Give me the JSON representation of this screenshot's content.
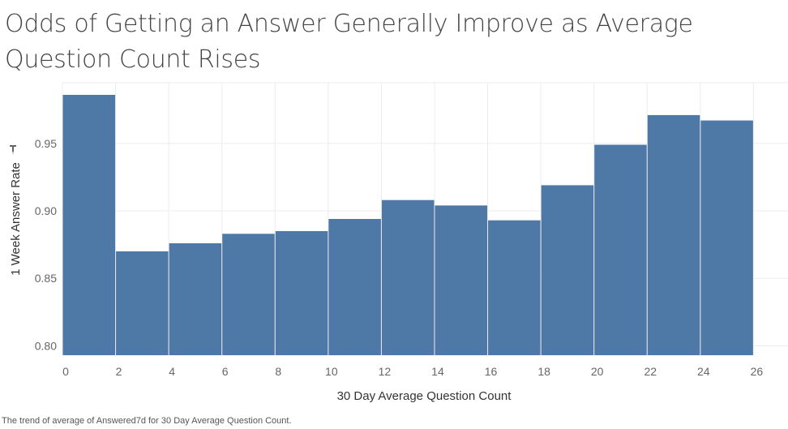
{
  "title": "Odds of Getting an Answer Generally Improve as Average Question Count Rises",
  "caption": "The trend of average of Answered7d for 30 Day Average Question Count.",
  "colors": {
    "bar": "#4e79a7",
    "grid": "#ececec",
    "axis_text": "#666666"
  },
  "chart_data": {
    "type": "bar",
    "title": "Odds of Getting an Answer Generally Improve as Average Question Count Rises",
    "xlabel": "30 Day Average Question Count",
    "ylabel": "1 Week Answer Rate",
    "ylabel_icon": "pin-icon",
    "bins": [
      {
        "start": 0,
        "end": 2,
        "value": 0.986
      },
      {
        "start": 2,
        "end": 4,
        "value": 0.87
      },
      {
        "start": 4,
        "end": 6,
        "value": 0.876
      },
      {
        "start": 6,
        "end": 8,
        "value": 0.883
      },
      {
        "start": 8,
        "end": 10,
        "value": 0.885
      },
      {
        "start": 10,
        "end": 12,
        "value": 0.894
      },
      {
        "start": 12,
        "end": 14,
        "value": 0.908
      },
      {
        "start": 14,
        "end": 16,
        "value": 0.904
      },
      {
        "start": 16,
        "end": 18,
        "value": 0.893
      },
      {
        "start": 18,
        "end": 20,
        "value": 0.919
      },
      {
        "start": 20,
        "end": 22,
        "value": 0.949
      },
      {
        "start": 22,
        "end": 24,
        "value": 0.971
      },
      {
        "start": 24,
        "end": 26,
        "value": 0.967
      }
    ],
    "xlim": [
      0,
      27.3
    ],
    "ylim": [
      0.793,
      0.995
    ],
    "xticks": [
      "0",
      "2",
      "4",
      "6",
      "8",
      "10",
      "12",
      "14",
      "16",
      "18",
      "20",
      "22",
      "24",
      "26"
    ],
    "yticks": [
      "0.80",
      "0.85",
      "0.90",
      "0.95"
    ],
    "grid": true,
    "legend": "none"
  }
}
